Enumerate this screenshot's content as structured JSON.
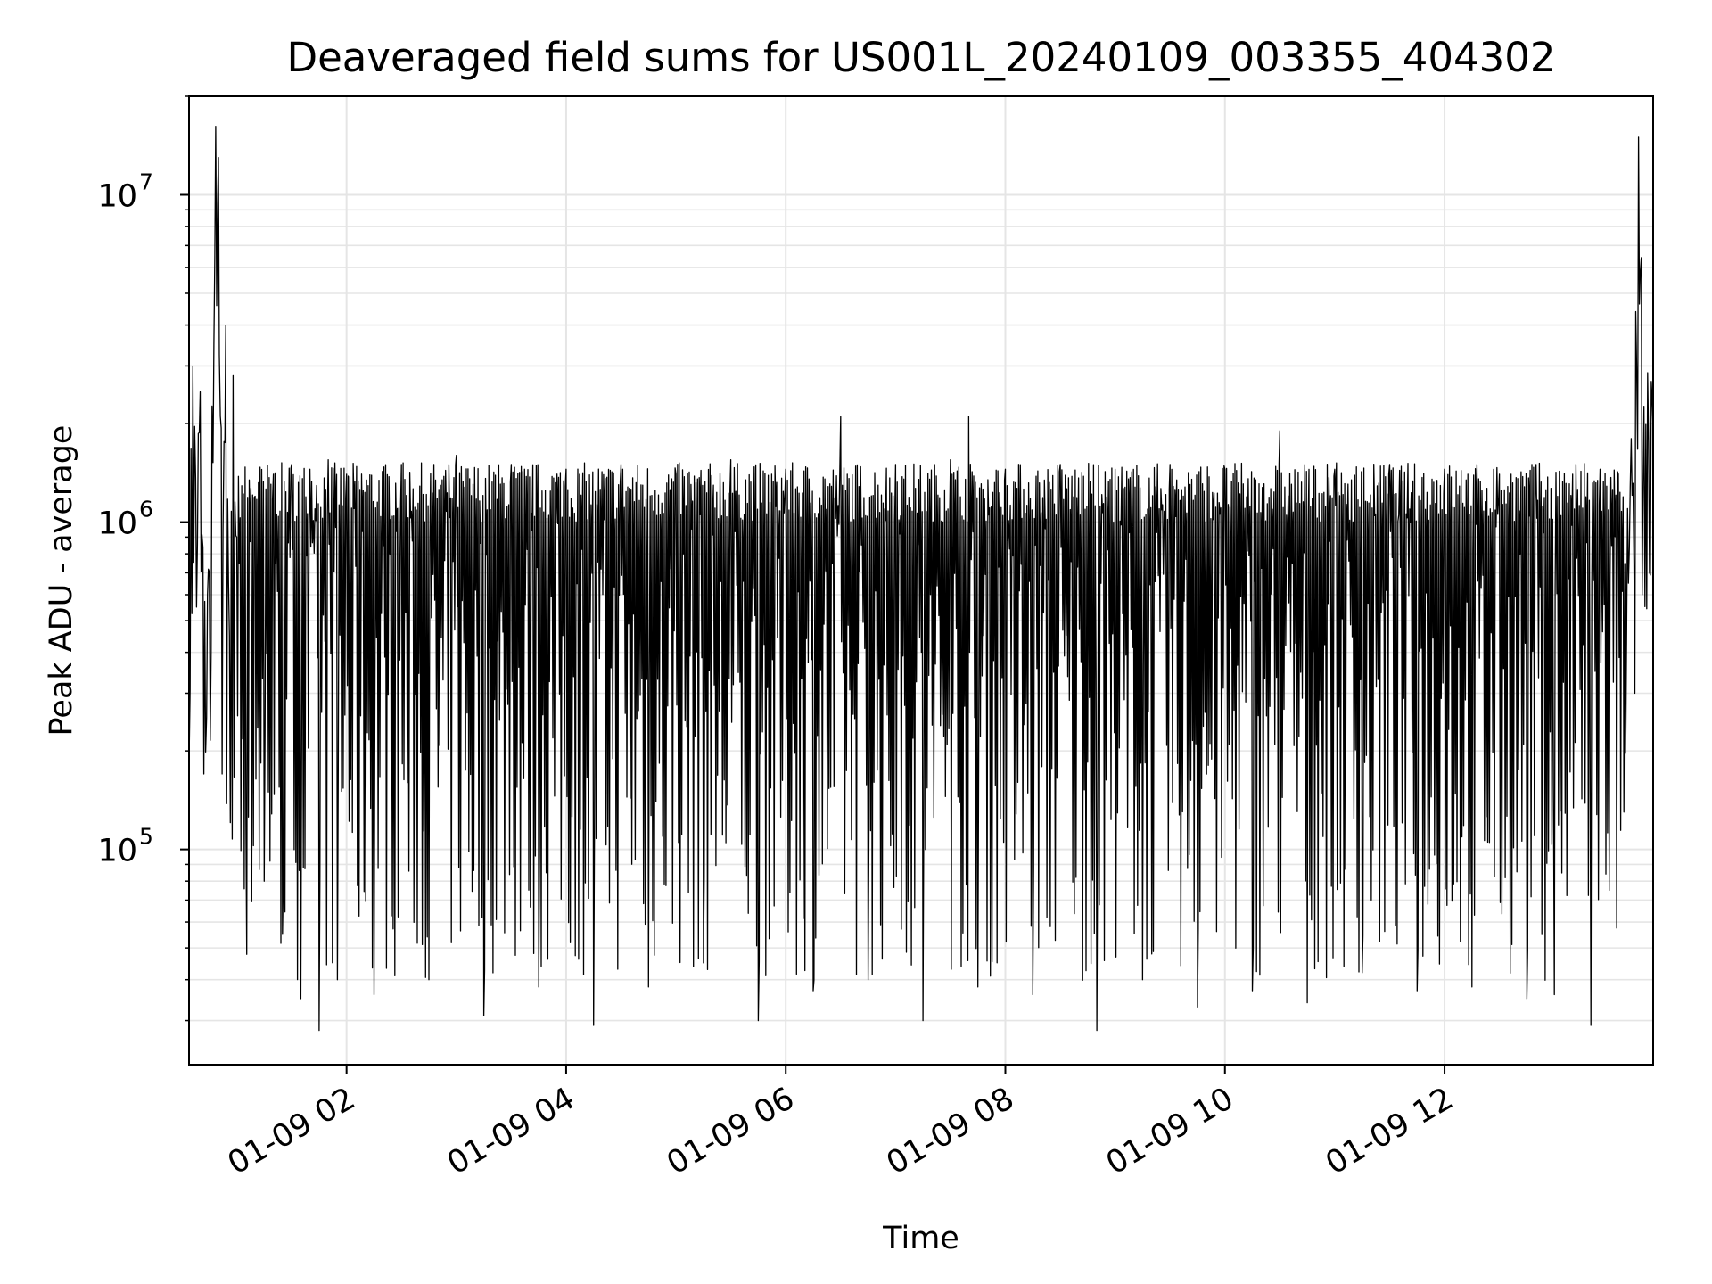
{
  "chart_data": {
    "type": "line",
    "title": "Deaveraged field sums for US001L_20240109_003355_404302",
    "xlabel": "Time",
    "ylabel": "Peak ADU - average",
    "yscale": "log",
    "grid": true,
    "line_color": "#000000",
    "grid_color": "#e5e5e5",
    "xlim": [
      "2024-01-09 00:33:55",
      "2024-01-09 13:54:00"
    ],
    "ylim": [
      22000,
      20000000
    ],
    "x_ticks": [
      {
        "value": "2024-01-09 02:00",
        "label": "01-09 02"
      },
      {
        "value": "2024-01-09 04:00",
        "label": "01-09 04"
      },
      {
        "value": "2024-01-09 06:00",
        "label": "01-09 06"
      },
      {
        "value": "2024-01-09 08:00",
        "label": "01-09 08"
      },
      {
        "value": "2024-01-09 10:00",
        "label": "01-09 10"
      },
      {
        "value": "2024-01-09 12:00",
        "label": "01-09 12"
      }
    ],
    "y_ticks": [
      {
        "value": 100000,
        "base": "10",
        "exp": "5"
      },
      {
        "value": 1000000,
        "base": "10",
        "exp": "6"
      },
      {
        "value": 10000000,
        "base": "10",
        "exp": "7"
      }
    ],
    "series": [
      {
        "x": [
          "2024-01-09 00:34",
          "2024-01-09 00:36",
          "2024-01-09 00:38",
          "2024-01-09 00:40",
          "2024-01-09 00:42",
          "2024-01-09 00:44",
          "2024-01-09 00:46",
          "2024-01-09 00:48",
          "2024-01-09 00:50",
          "2024-01-09 00:52",
          "2024-01-09 00:54",
          "2024-01-09 00:56",
          "2024-01-09 00:58",
          "2024-01-09 01:00",
          "2024-01-09 01:05",
          "2024-01-09 01:10",
          "2024-01-09 01:15",
          "2024-01-09 01:20",
          "2024-01-09 01:25",
          "2024-01-09 01:30",
          "2024-01-09 01:35",
          "2024-01-09 01:40",
          "2024-01-09 01:45",
          "2024-01-09 01:50",
          "2024-01-09 01:55",
          "2024-01-09 02:00",
          "2024-01-09 02:15",
          "2024-01-09 02:30",
          "2024-01-09 02:45",
          "2024-01-09 03:00",
          "2024-01-09 03:15",
          "2024-01-09 03:30",
          "2024-01-09 03:45",
          "2024-01-09 04:00",
          "2024-01-09 04:15",
          "2024-01-09 04:30",
          "2024-01-09 04:45",
          "2024-01-09 05:00",
          "2024-01-09 05:15",
          "2024-01-09 05:30",
          "2024-01-09 05:45",
          "2024-01-09 06:00",
          "2024-01-09 06:15",
          "2024-01-09 06:30",
          "2024-01-09 06:45",
          "2024-01-09 07:00",
          "2024-01-09 07:15",
          "2024-01-09 07:30",
          "2024-01-09 07:40",
          "2024-01-09 07:45",
          "2024-01-09 08:00",
          "2024-01-09 08:15",
          "2024-01-09 08:30",
          "2024-01-09 08:50",
          "2024-01-09 09:00",
          "2024-01-09 09:15",
          "2024-01-09 09:30",
          "2024-01-09 09:45",
          "2024-01-09 10:00",
          "2024-01-09 10:15",
          "2024-01-09 10:30",
          "2024-01-09 10:45",
          "2024-01-09 11:00",
          "2024-01-09 11:15",
          "2024-01-09 11:30",
          "2024-01-09 11:45",
          "2024-01-09 12:00",
          "2024-01-09 12:15",
          "2024-01-09 12:30",
          "2024-01-09 12:45",
          "2024-01-09 12:50",
          "2024-01-09 13:00",
          "2024-01-09 13:10",
          "2024-01-09 13:20",
          "2024-01-09 13:25",
          "2024-01-09 13:30",
          "2024-01-09 13:35",
          "2024-01-09 13:38",
          "2024-01-09 13:40",
          "2024-01-09 13:42",
          "2024-01-09 13:44",
          "2024-01-09 13:46",
          "2024-01-09 13:48",
          "2024-01-09 13:50",
          "2024-01-09 13:52",
          "2024-01-09 13:54"
        ],
        "y": [
          200000,
          3000000,
          550000,
          2500000,
          170000,
          600000,
          400000,
          6500000,
          13000000,
          170000,
          4000000,
          450000,
          2800000,
          900000,
          120000,
          1200000,
          80000,
          1400000,
          55000,
          1500000,
          35000,
          1450000,
          28000,
          1550000,
          40000,
          1400000,
          36000,
          1500000,
          40000,
          1600000,
          31000,
          1500000,
          38000,
          1450000,
          29000,
          1500000,
          38000,
          1400000,
          45000,
          1550000,
          30000,
          1450000,
          37000,
          2100000,
          40000,
          1500000,
          30000,
          1550000,
          2100000,
          38000,
          1450000,
          36000,
          1500000,
          28000,
          1450000,
          40000,
          1500000,
          33000,
          1450000,
          37000,
          1900000,
          34000,
          1450000,
          42000,
          1500000,
          37000,
          1450000,
          38000,
          1400000,
          35000,
          1500000,
          36000,
          1400000,
          29000,
          1450000,
          75000,
          1400000,
          130000,
          1100000,
          1800000,
          300000,
          15000000,
          600000,
          2000000,
          700000,
          1900000
        ]
      }
    ]
  }
}
